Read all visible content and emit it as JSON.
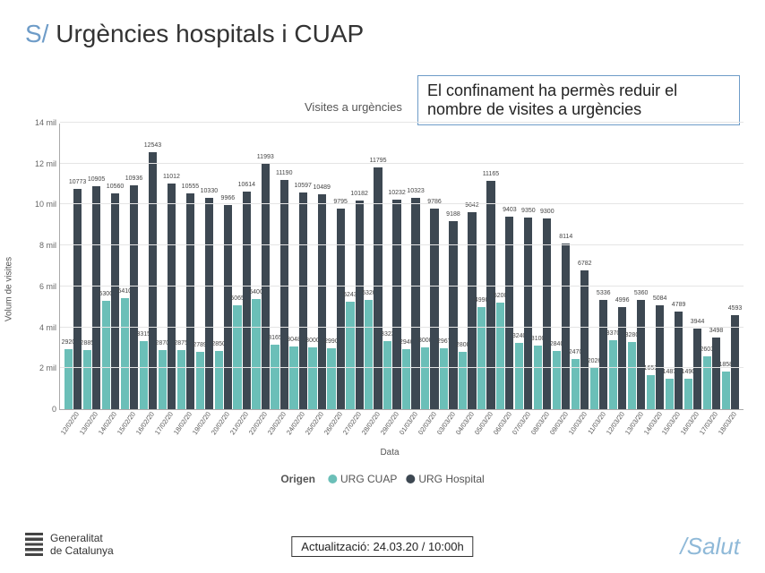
{
  "title": {
    "prefix": "S/",
    "main": "Urgències hospitals i CUAP"
  },
  "callout": "El confinament ha permès reduir el nombre de visites a urgències",
  "chart": {
    "type": "bar",
    "title": "Visites a urgències",
    "yaxis_label": "Volum de visites",
    "xaxis_label": "Data",
    "ylim_max": 14000,
    "yticks": [
      {
        "v": 0,
        "label": "0"
      },
      {
        "v": 2000,
        "label": "2 mil"
      },
      {
        "v": 4000,
        "label": "4 mil"
      },
      {
        "v": 6000,
        "label": "6 mil"
      },
      {
        "v": 8000,
        "label": "8 mil"
      },
      {
        "v": 10000,
        "label": "10 mil"
      },
      {
        "v": 12000,
        "label": "12 mil"
      },
      {
        "v": 14000,
        "label": "14 mil"
      }
    ],
    "colors": {
      "cuap": "#6bbfb8",
      "hospital": "#3d4852",
      "grid": "#e5e5e5",
      "background": "#ffffff"
    },
    "legend": {
      "title": "Origen",
      "cuap": "URG CUAP",
      "hospital": "URG Hospital"
    },
    "data": [
      {
        "date": "12/02/20",
        "cuap": 2920,
        "hosp": 10773
      },
      {
        "date": "13/02/20",
        "cuap": 2885,
        "hosp": 10905
      },
      {
        "date": "14/02/20",
        "cuap": 5300,
        "hosp": 10560
      },
      {
        "date": "15/02/20",
        "cuap": 5410,
        "hosp": 10936
      },
      {
        "date": "16/02/20",
        "cuap": 3315,
        "hosp": 12543
      },
      {
        "date": "17/02/20",
        "cuap": 2870,
        "hosp": 11012
      },
      {
        "date": "18/02/20",
        "cuap": 2875,
        "hosp": 10555
      },
      {
        "date": "19/02/20",
        "cuap": 2789,
        "hosp": 10330
      },
      {
        "date": "20/02/20",
        "cuap": 2850,
        "hosp": 9966
      },
      {
        "date": "21/02/20",
        "cuap": 5065,
        "hosp": 10614
      },
      {
        "date": "22/02/20",
        "cuap": 5400,
        "hosp": 11993
      },
      {
        "date": "23/02/20",
        "cuap": 3165,
        "hosp": 11190
      },
      {
        "date": "24/02/20",
        "cuap": 3048,
        "hosp": 10597
      },
      {
        "date": "25/02/20",
        "cuap": 3000,
        "hosp": 10489
      },
      {
        "date": "26/02/20",
        "cuap": 2990,
        "hosp": 9795
      },
      {
        "date": "27/02/20",
        "cuap": 5243,
        "hosp": 10182
      },
      {
        "date": "28/02/20",
        "cuap": 5320,
        "hosp": 11795
      },
      {
        "date": "29/02/20",
        "cuap": 3323,
        "hosp": 10232
      },
      {
        "date": "01/03/20",
        "cuap": 2940,
        "hosp": 10323
      },
      {
        "date": "02/03/20",
        "cuap": 3000,
        "hosp": 9786
      },
      {
        "date": "03/03/20",
        "cuap": 2967,
        "hosp": 9188
      },
      {
        "date": "04/03/20",
        "cuap": 2800,
        "hosp": 9642
      },
      {
        "date": "05/03/20",
        "cuap": 4990,
        "hosp": 11165
      },
      {
        "date": "06/03/20",
        "cuap": 5200,
        "hosp": 9403
      },
      {
        "date": "07/03/20",
        "cuap": 3240,
        "hosp": 9350
      },
      {
        "date": "08/03/20",
        "cuap": 3100,
        "hosp": 9300
      },
      {
        "date": "09/03/20",
        "cuap": 2840,
        "hosp": 8114
      },
      {
        "date": "10/03/20",
        "cuap": 2470,
        "hosp": 6782
      },
      {
        "date": "11/03/20",
        "cuap": 2026,
        "hosp": 5336
      },
      {
        "date": "12/03/20",
        "cuap": 3370,
        "hosp": 4996
      },
      {
        "date": "13/03/20",
        "cuap": 3280,
        "hosp": 5360
      },
      {
        "date": "14/03/20",
        "cuap": 1653,
        "hosp": 5084
      },
      {
        "date": "15/03/20",
        "cuap": 1487,
        "hosp": 4789
      },
      {
        "date": "16/03/20",
        "cuap": 1490,
        "hosp": 3944
      },
      {
        "date": "17/03/20",
        "cuap": 2603,
        "hosp": 3498
      },
      {
        "date": "18/03/20",
        "cuap": 1858,
        "hosp": 4593
      }
    ]
  },
  "footer": {
    "org1": "Generalitat",
    "org2": "de Catalunya",
    "update": "Actualització: 24.03.20 / 10:00h",
    "brand": "/Salut"
  }
}
